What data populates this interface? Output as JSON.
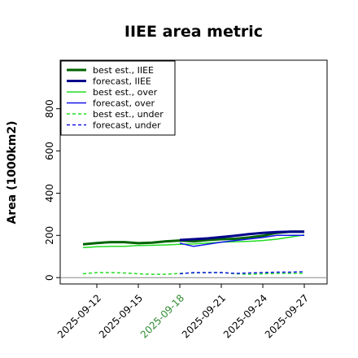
{
  "chart_data": {
    "type": "line",
    "title": "IIEE area metric",
    "xlabel": "",
    "ylabel": "Area (1000km2)",
    "x": [
      "2025-09-11",
      "2025-09-12",
      "2025-09-13",
      "2025-09-14",
      "2025-09-15",
      "2025-09-16",
      "2025-09-17",
      "2025-09-18",
      "2025-09-19",
      "2025-09-20",
      "2025-09-21",
      "2025-09-22",
      "2025-09-23",
      "2025-09-24",
      "2025-09-25",
      "2025-09-26",
      "2025-09-27"
    ],
    "xticks": [
      "2025-09-12",
      "2025-09-15",
      "2025-09-18",
      "2025-09-21",
      "2025-09-24",
      "2025-09-27"
    ],
    "highlighted_xtick": "2025-09-18",
    "highlight_color": "#2e8b2e",
    "yticks": [
      0,
      200,
      400,
      600,
      800
    ],
    "ylim": [
      -30,
      1030
    ],
    "grid": false,
    "legend_position": "top-left",
    "series": [
      {
        "name": "best est., IIEE",
        "color": "#006400",
        "style": "solid",
        "width": 3,
        "values": [
          158,
          164,
          168,
          168,
          163,
          166,
          172,
          176,
          172,
          178,
          182,
          184,
          190,
          198,
          212,
          218,
          218
        ]
      },
      {
        "name": "forecast, IIEE",
        "color": "#00008b",
        "style": "solid",
        "width": 3,
        "values": [
          null,
          null,
          null,
          null,
          null,
          null,
          null,
          178,
          182,
          186,
          192,
          198,
          206,
          212,
          216,
          218,
          218
        ]
      },
      {
        "name": "best est., over",
        "color": "#22dd22",
        "style": "solid",
        "width": 1.5,
        "values": [
          142,
          146,
          148,
          148,
          152,
          153,
          155,
          158,
          160,
          164,
          168,
          170,
          172,
          176,
          182,
          192,
          202
        ]
      },
      {
        "name": "forecast, over",
        "color": "#1515ee",
        "style": "solid",
        "width": 1.5,
        "values": [
          null,
          null,
          null,
          null,
          null,
          null,
          null,
          163,
          148,
          158,
          168,
          176,
          183,
          190,
          200,
          200,
          200
        ]
      },
      {
        "name": "best est., under",
        "color": "#22dd22",
        "style": "dashed",
        "width": 1.5,
        "values": [
          18,
          24,
          24,
          22,
          18,
          16,
          16,
          20,
          22,
          24,
          24,
          18,
          16,
          18,
          20,
          20,
          20
        ]
      },
      {
        "name": "forecast, under",
        "color": "#1515ee",
        "style": "dashed",
        "width": 1.5,
        "values": [
          null,
          null,
          null,
          null,
          null,
          null,
          null,
          18,
          24,
          24,
          24,
          20,
          22,
          24,
          26,
          26,
          28
        ]
      }
    ],
    "baseline": {
      "value": 0,
      "color": "#888888"
    }
  }
}
